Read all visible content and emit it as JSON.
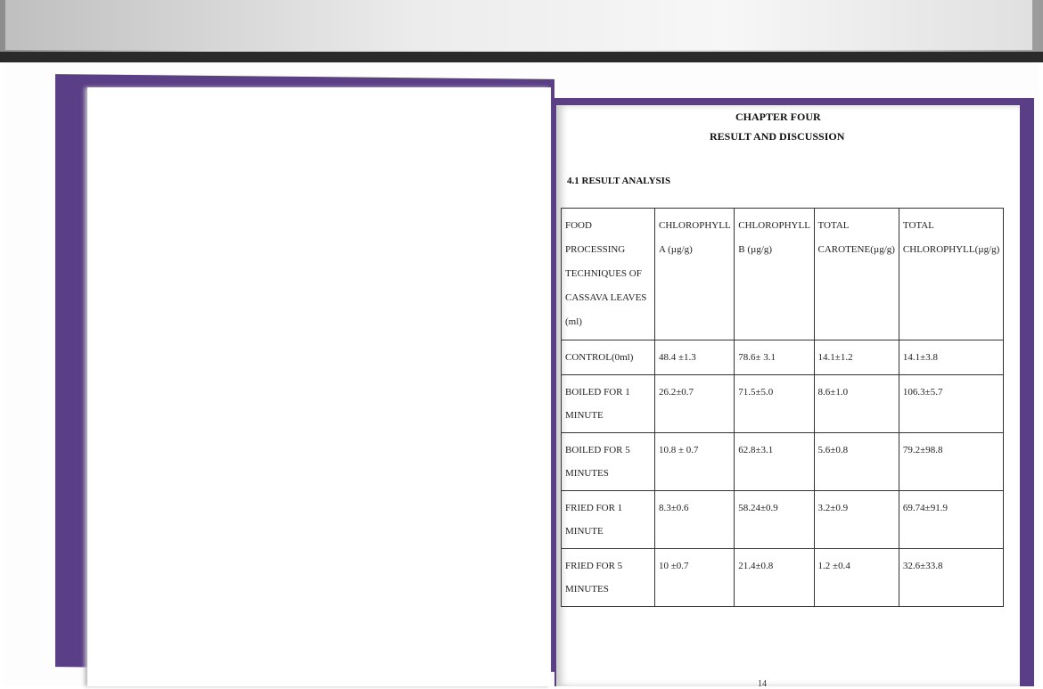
{
  "document": {
    "chapter": "CHAPTER FOUR",
    "heading": "RESULT AND DISCUSSION",
    "section": "4.1 RESULT ANALYSIS",
    "page_number": "14",
    "cover_color": "#5b3f86",
    "table": {
      "headers": [
        "FOOD PROCESSING TECHNIQUES OF CASSAVA LEAVES (ml)",
        "CHLOROPHYLL A (µg/g)",
        "CHLOROPHYLL B (µg/g)",
        "TOTAL CAROTENE(µg/g)",
        "TOTAL CHLOROPHYLL(µg/g)"
      ],
      "rows": [
        [
          "CONTROL(0ml)",
          "48.4 ±1.3",
          "78.6± 3.1",
          "14.1±1.2",
          "14.1±3.8"
        ],
        [
          "BOILED FOR 1 MINUTE",
          "26.2±0.7",
          "71.5±5.0",
          "8.6±1.0",
          "106.3±5.7"
        ],
        [
          "BOILED FOR 5 MINUTES",
          "10.8 ± 0.7",
          "62.8±3.1",
          "5.6±0.8",
          "79.2±98.8"
        ],
        [
          "FRIED FOR 1 MINUTE",
          "8.3±0.6",
          "58.24±0.9",
          "3.2±0.9",
          "69.74±91.9"
        ],
        [
          "FRIED FOR 5 MINUTES",
          "10 ±0.7",
          "21.4±0.8",
          "1.2 ±0.4",
          "32.6±33.8"
        ]
      ]
    }
  }
}
